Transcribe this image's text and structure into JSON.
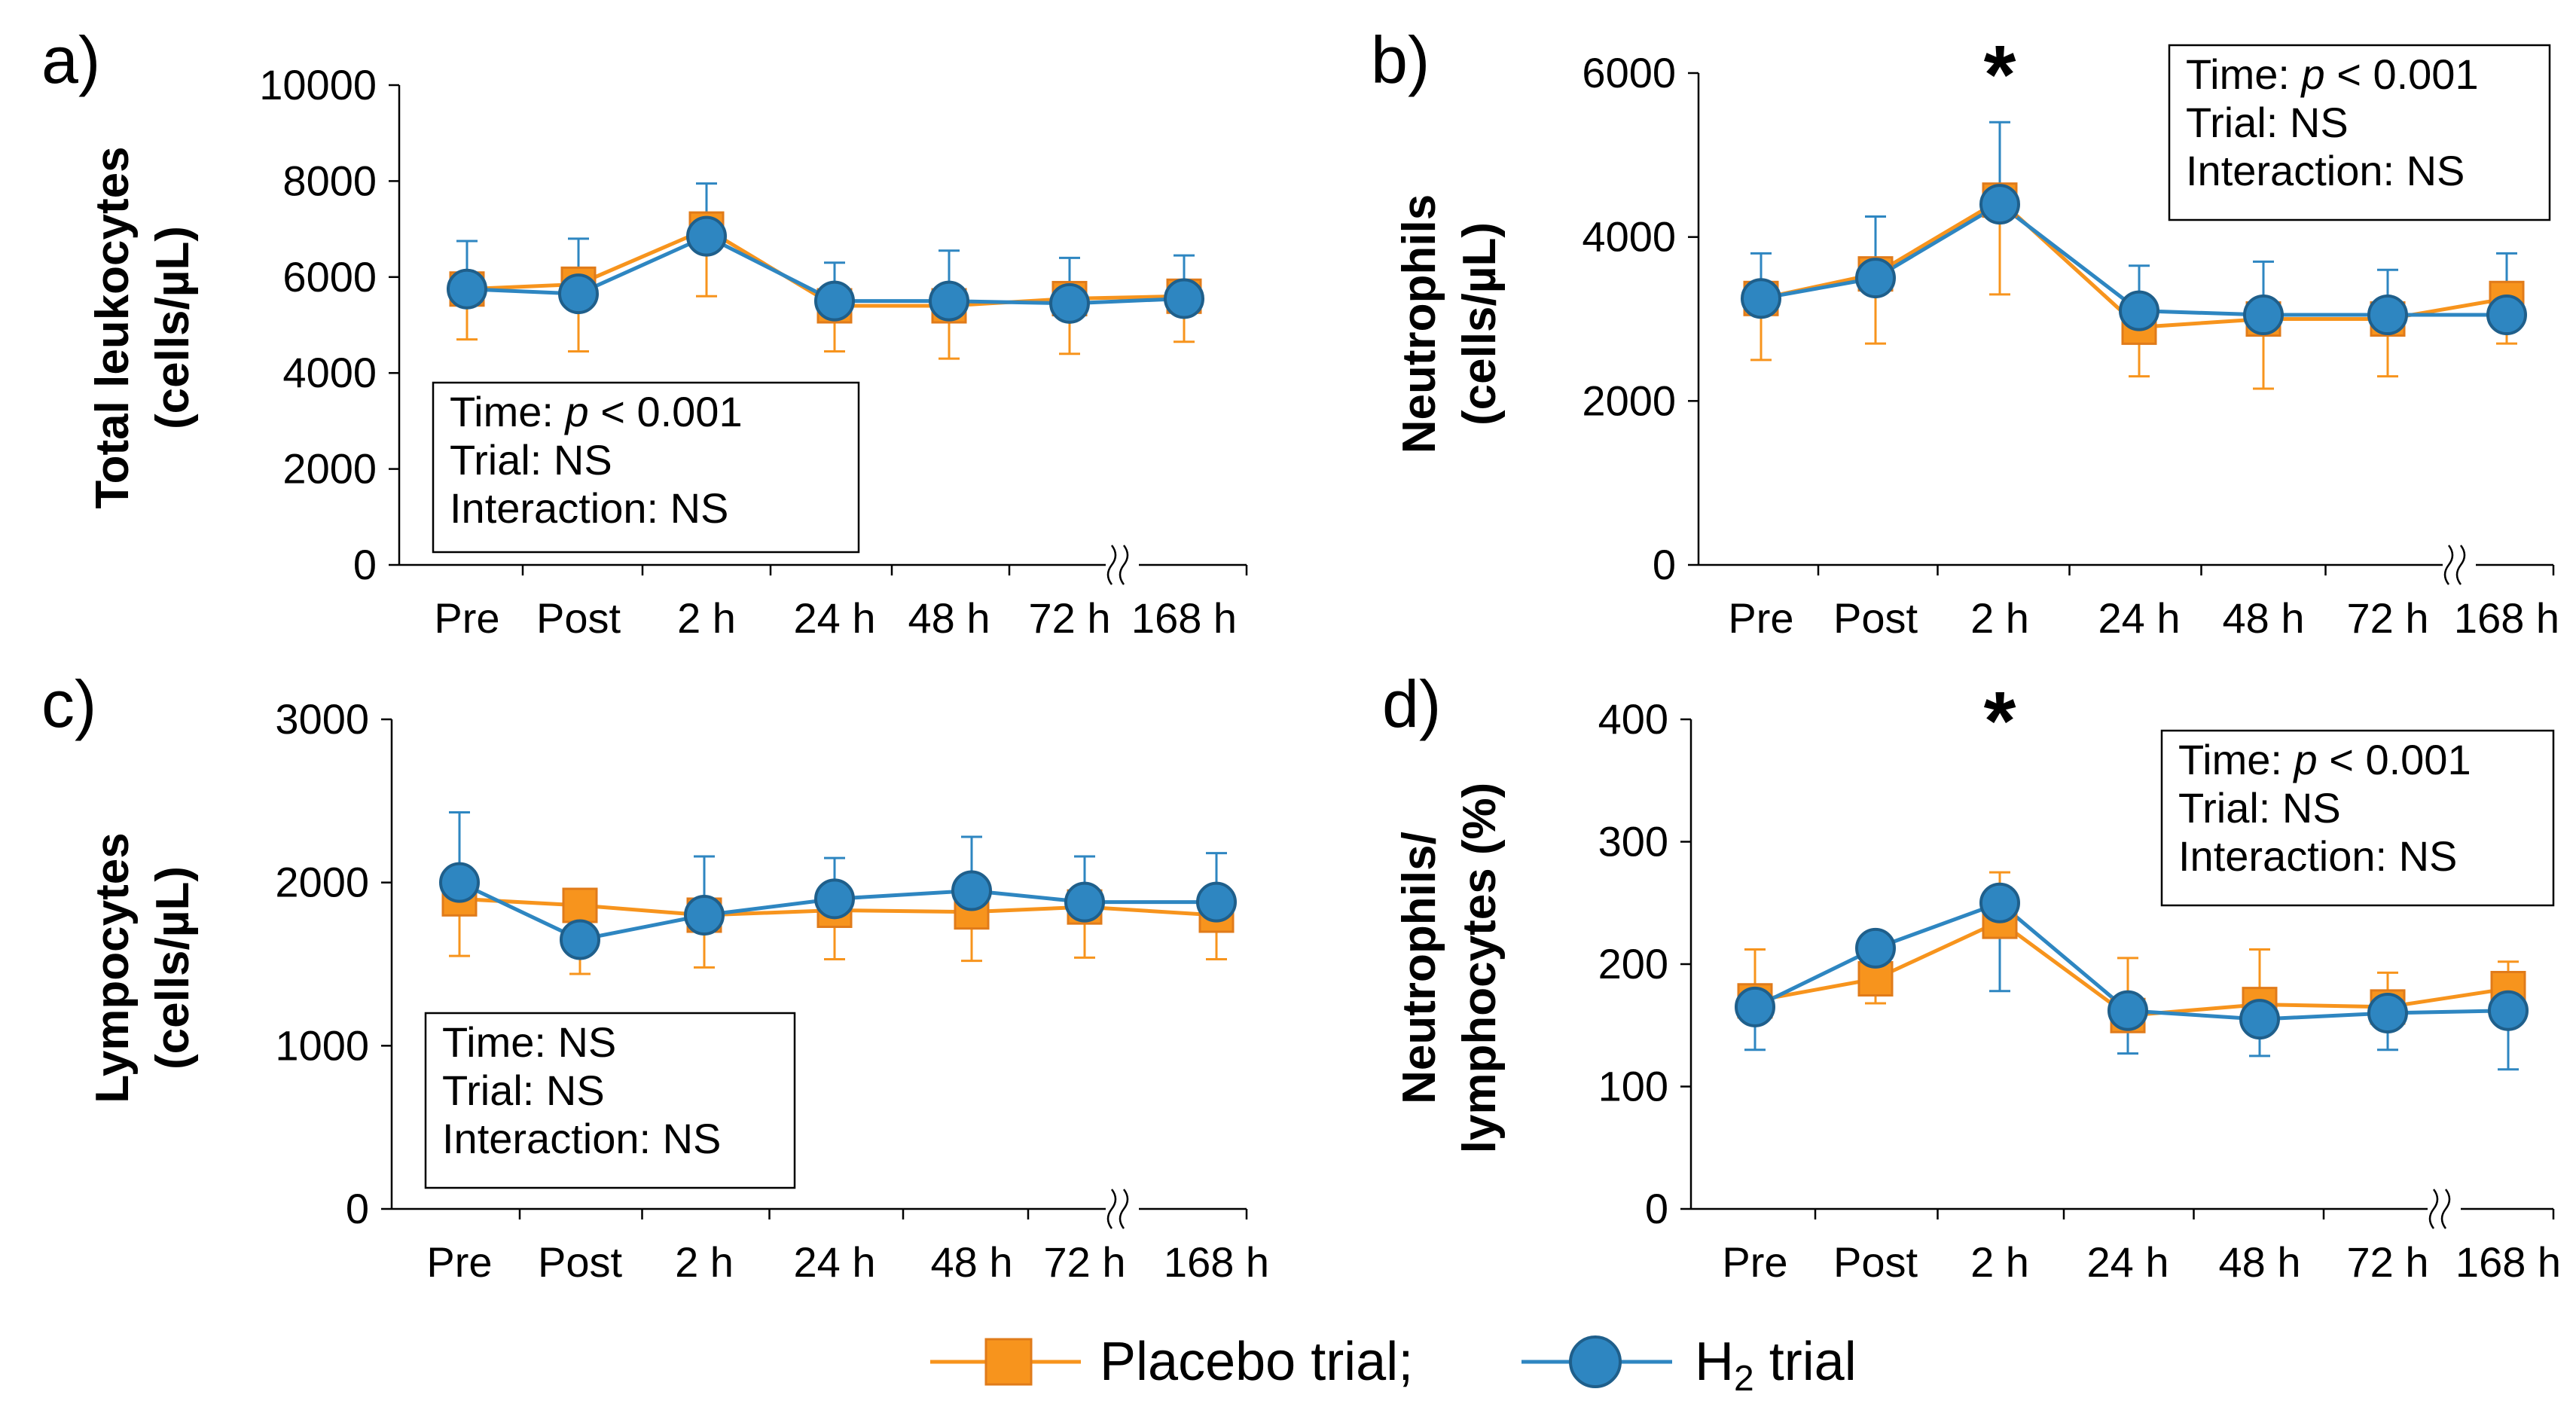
{
  "colors": {
    "placebo": "#F7941D",
    "h2": "#2E86C1",
    "h2_edge": "#1F5F8B",
    "placebo_edge": "#E07B1A"
  },
  "legend": {
    "placebo_label": "Placebo trial;",
    "h2_prefix": "H",
    "h2_subscript": "2",
    "h2_suffix": " trial"
  },
  "chart_data": [
    {
      "type": "line",
      "panel_label": "a)",
      "ylabel_line1": "Total leukocytes",
      "ylabel_line2": "(cells/µL)",
      "ylim": [
        0,
        10000
      ],
      "yticks": [
        "0",
        "2000",
        "4000",
        "6000",
        "8000",
        "10000"
      ],
      "categories": [
        "Pre",
        "Post",
        "2 h",
        "24 h",
        "48 h",
        "72 h",
        "168 h"
      ],
      "stats": {
        "line1_prefix": "Time: ",
        "p": "p",
        "line1_suffix": " < 0.001",
        "line2": "Trial: NS",
        "line3": "Interaction: NS",
        "position": "bottom-left"
      },
      "asterisk": null,
      "series": [
        {
          "name": "Placebo trial",
          "values": [
            5750,
            5850,
            7000,
            5400,
            5400,
            5550,
            5600
          ],
          "err_down": [
            1050,
            1400,
            1400,
            950,
            1100,
            1150,
            950
          ]
        },
        {
          "name": "H2 trial",
          "values": [
            5750,
            5650,
            6850,
            5500,
            5500,
            5450,
            5550
          ],
          "err_up": [
            1000,
            1150,
            1100,
            800,
            1050,
            950,
            900
          ]
        }
      ]
    },
    {
      "type": "line",
      "panel_label": "b)",
      "ylabel_line1": "Neutrophils",
      "ylabel_line2": "(cells/µL)",
      "ylim": [
        0,
        6000
      ],
      "yticks": [
        "0",
        "2000",
        "4000",
        "6000"
      ],
      "categories": [
        "Pre",
        "Post",
        "2 h",
        "24 h",
        "48 h",
        "72 h",
        "168 h"
      ],
      "stats": {
        "line1_prefix": "Time: ",
        "p": "p",
        "line1_suffix": " < 0.001",
        "line2": "Trial: NS",
        "line3": "Interaction: NS",
        "position": "top-right"
      },
      "asterisk": {
        "text": "*",
        "index": 2
      },
      "series": [
        {
          "name": "Placebo trial",
          "values": [
            3250,
            3550,
            4450,
            2900,
            3000,
            3000,
            3250
          ],
          "err_down": [
            750,
            850,
            1150,
            600,
            850,
            700,
            550
          ]
        },
        {
          "name": "H2 trial",
          "values": [
            3250,
            3500,
            4400,
            3100,
            3050,
            3050,
            3050
          ],
          "err_up": [
            550,
            750,
            1000,
            550,
            650,
            550,
            750
          ]
        }
      ]
    },
    {
      "type": "line",
      "panel_label": "c)",
      "ylabel_line1": "Lympocytes",
      "ylabel_line2": "(cells/µL)",
      "ylim": [
        0,
        3000
      ],
      "yticks": [
        "0",
        "1000",
        "2000",
        "3000"
      ],
      "categories": [
        "Pre",
        "Post",
        "2 h",
        "24 h",
        "48 h",
        "72 h",
        "168 h"
      ],
      "stats": {
        "line1_prefix": "Time: NS",
        "p": "",
        "line1_suffix": "",
        "line2": "Trial: NS",
        "line3": "Interaction: NS",
        "position": "bottom-left"
      },
      "asterisk": null,
      "series": [
        {
          "name": "Placebo trial",
          "values": [
            1900,
            1860,
            1800,
            1830,
            1820,
            1850,
            1800
          ],
          "err_down": [
            350,
            420,
            320,
            300,
            300,
            310,
            270
          ]
        },
        {
          "name": "H2 trial",
          "values": [
            2000,
            1650,
            1800,
            1900,
            1950,
            1880,
            1880
          ],
          "err_up": [
            430,
            0,
            360,
            250,
            330,
            280,
            300
          ]
        }
      ]
    },
    {
      "type": "line",
      "panel_label": "d)",
      "ylabel_line1": "Neutrophils/",
      "ylabel_line2": "lymphocytes (%)",
      "ylim": [
        0,
        400
      ],
      "yticks": [
        "0",
        "100",
        "200",
        "300",
        "400"
      ],
      "categories": [
        "Pre",
        "Post",
        "2 h",
        "24 h",
        "48 h",
        "72 h",
        "168 h"
      ],
      "stats": {
        "line1_prefix": "Time: ",
        "p": "p",
        "line1_suffix": " < 0.001",
        "line2": "Trial: NS",
        "line3": "Interaction: NS",
        "position": "top-right"
      },
      "asterisk": {
        "text": "*",
        "index": 2
      },
      "series": [
        {
          "name": "Placebo trial",
          "values": [
            170,
            188,
            235,
            158,
            167,
            165,
            180
          ],
          "err_down": [
            0,
            20,
            0,
            0,
            0,
            0,
            0
          ],
          "err_up": [
            42,
            0,
            40,
            47,
            45,
            28,
            22
          ]
        },
        {
          "name": "H2 trial",
          "values": [
            165,
            213,
            250,
            162,
            155,
            160,
            162
          ],
          "err_down": [
            35,
            0,
            72,
            35,
            30,
            30,
            48
          ],
          "err_up": [
            0,
            0,
            0,
            0,
            0,
            0,
            0
          ]
        }
      ]
    }
  ]
}
